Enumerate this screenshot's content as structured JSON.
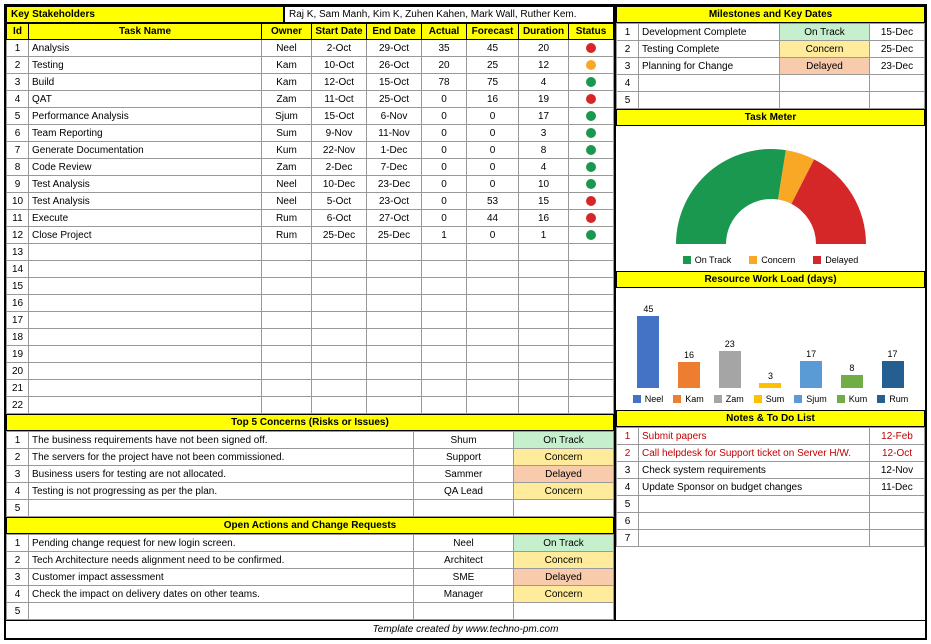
{
  "status_colors": {
    "On Track": {
      "bg": "#c6efce",
      "dot": "#1a9850"
    },
    "Concern": {
      "bg": "#ffeb9c",
      "dot": "#f9a825"
    },
    "Delayed": {
      "bg": "#f8cbad",
      "dot": "#d62728"
    }
  },
  "stakeholders": {
    "label": "Key Stakeholders",
    "value": "Raj K, Sam Manh, Kim K, Zuhen Kahen, Mark Wall, Ruther Kem."
  },
  "task_headers": [
    "Id",
    "Task Name",
    "Owner",
    "Start Date",
    "End Date",
    "Actual",
    "Forecast",
    "Duration",
    "Status"
  ],
  "tasks": [
    {
      "id": 1,
      "name": "Analysis",
      "owner": "Neel",
      "start": "2-Oct",
      "end": "29-Oct",
      "actual": 35,
      "forecast": 45,
      "duration": 20,
      "status": "Delayed"
    },
    {
      "id": 2,
      "name": "Testing",
      "owner": "Kam",
      "start": "10-Oct",
      "end": "26-Oct",
      "actual": 20,
      "forecast": 25,
      "duration": 12,
      "status": "Concern"
    },
    {
      "id": 3,
      "name": "Build",
      "owner": "Kam",
      "start": "12-Oct",
      "end": "15-Oct",
      "actual": 78,
      "forecast": 75,
      "duration": 4,
      "status": "On Track"
    },
    {
      "id": 4,
      "name": "QAT",
      "owner": "Zam",
      "start": "11-Oct",
      "end": "25-Oct",
      "actual": 0,
      "forecast": 16,
      "duration": 19,
      "status": "Delayed"
    },
    {
      "id": 5,
      "name": "Performance Analysis",
      "owner": "Sjum",
      "start": "15-Oct",
      "end": "6-Nov",
      "actual": 0,
      "forecast": 0,
      "duration": 17,
      "status": "On Track"
    },
    {
      "id": 6,
      "name": "Team Reporting",
      "owner": "Sum",
      "start": "9-Nov",
      "end": "11-Nov",
      "actual": 0,
      "forecast": 0,
      "duration": 3,
      "status": "On Track"
    },
    {
      "id": 7,
      "name": "Generate Documentation",
      "owner": "Kum",
      "start": "22-Nov",
      "end": "1-Dec",
      "actual": 0,
      "forecast": 0,
      "duration": 8,
      "status": "On Track"
    },
    {
      "id": 8,
      "name": "Code Review",
      "owner": "Zam",
      "start": "2-Dec",
      "end": "7-Dec",
      "actual": 0,
      "forecast": 0,
      "duration": 4,
      "status": "On Track"
    },
    {
      "id": 9,
      "name": "Test Analysis",
      "owner": "Neel",
      "start": "10-Dec",
      "end": "23-Dec",
      "actual": 0,
      "forecast": 0,
      "duration": 10,
      "status": "On Track"
    },
    {
      "id": 10,
      "name": "Test Analysis",
      "owner": "Neel",
      "start": "5-Oct",
      "end": "23-Oct",
      "actual": 0,
      "forecast": 53,
      "duration": 15,
      "status": "Delayed"
    },
    {
      "id": 11,
      "name": "Execute",
      "owner": "Rum",
      "start": "6-Oct",
      "end": "27-Oct",
      "actual": 0,
      "forecast": 44,
      "duration": 16,
      "status": "Delayed"
    },
    {
      "id": 12,
      "name": "Close Project",
      "owner": "Rum",
      "start": "25-Dec",
      "end": "25-Dec",
      "actual": 1,
      "forecast": 0,
      "duration": 1,
      "status": "On Track"
    }
  ],
  "empty_task_rows": [
    13,
    14,
    15,
    16,
    17,
    18,
    19,
    20,
    21,
    22
  ],
  "milestones_title": "Milestones and Key Dates",
  "milestones": [
    {
      "id": 1,
      "name": "Development Complete",
      "status": "On Track",
      "date": "15-Dec"
    },
    {
      "id": 2,
      "name": "Testing Complete",
      "status": "Concern",
      "date": "25-Dec"
    },
    {
      "id": 3,
      "name": "Planning for Change",
      "status": "Delayed",
      "date": "23-Dec"
    }
  ],
  "empty_milestone_rows": [
    4,
    5
  ],
  "task_meter": {
    "title": "Task Meter",
    "segments": [
      {
        "label": "On Track",
        "color": "#1a9850",
        "pct": 55
      },
      {
        "label": "Concern",
        "color": "#f9a825",
        "pct": 10
      },
      {
        "label": "Delayed",
        "color": "#d62728",
        "pct": 35
      }
    ]
  },
  "resource_load": {
    "title": "Resource Work Load (days)",
    "bars": [
      {
        "name": "Neel",
        "val": 45,
        "color": "#4472c4"
      },
      {
        "name": "Kam",
        "val": 16,
        "color": "#ed7d31"
      },
      {
        "name": "Zam",
        "val": 23,
        "color": "#a5a5a5"
      },
      {
        "name": "Sum",
        "val": 3,
        "color": "#ffc000"
      },
      {
        "name": "Sjum",
        "val": 17,
        "color": "#5b9bd5"
      },
      {
        "name": "Kum",
        "val": 8,
        "color": "#70ad47"
      },
      {
        "name": "Rum",
        "val": 17,
        "color": "#255e91"
      }
    ],
    "max": 50
  },
  "concerns": {
    "title": "Top 5 Concerns (Risks or Issues)",
    "rows": [
      {
        "id": 1,
        "text": "The business requirements have not been signed off.",
        "owner": "Shum",
        "status": "On Track"
      },
      {
        "id": 2,
        "text": "The servers for the project have not been commissioned.",
        "owner": "Support",
        "status": "Concern"
      },
      {
        "id": 3,
        "text": "Business users for testing are not allocated.",
        "owner": "Sammer",
        "status": "Delayed"
      },
      {
        "id": 4,
        "text": "Testing is not progressing as per the plan.",
        "owner": "QA Lead",
        "status": "Concern"
      },
      {
        "id": 5,
        "text": "",
        "owner": "",
        "status": ""
      }
    ]
  },
  "actions": {
    "title": "Open Actions and Change Requests",
    "rows": [
      {
        "id": 1,
        "text": "Pending change request for new login screen.",
        "owner": "Neel",
        "status": "On Track"
      },
      {
        "id": 2,
        "text": "Tech Architecture needs alignment need to be confirmed.",
        "owner": "Architect",
        "status": "Concern"
      },
      {
        "id": 3,
        "text": "Customer impact assessment",
        "owner": "SME",
        "status": "Delayed"
      },
      {
        "id": 4,
        "text": "Check the impact on delivery dates on other teams.",
        "owner": "Manager",
        "status": "Concern"
      },
      {
        "id": 5,
        "text": "",
        "owner": "",
        "status": ""
      }
    ]
  },
  "notes": {
    "title": "Notes & To Do List",
    "rows": [
      {
        "id": 1,
        "text": "Submit papers",
        "date": "12-Feb",
        "red": true
      },
      {
        "id": 2,
        "text": "Call helpdesk for Support ticket on Server H/W.",
        "date": "12-Oct",
        "red": true
      },
      {
        "id": 3,
        "text": "Check system requirements",
        "date": "12-Nov",
        "red": false
      },
      {
        "id": 4,
        "text": "Update Sponsor on budget changes",
        "date": "11-Dec",
        "red": false
      },
      {
        "id": 5,
        "text": "",
        "date": "",
        "red": false
      },
      {
        "id": 6,
        "text": "",
        "date": "",
        "red": false
      },
      {
        "id": 7,
        "text": "",
        "date": "",
        "red": false
      }
    ]
  },
  "footer": "Template created by www.techno-pm.com"
}
